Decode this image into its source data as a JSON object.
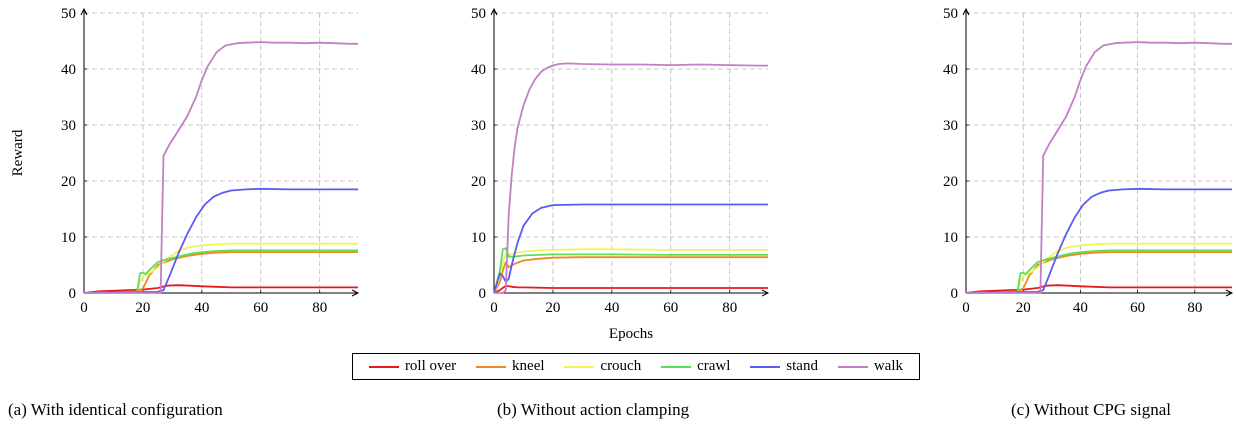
{
  "legend": {
    "items": [
      {
        "label": "roll over",
        "color": "#e41a1c"
      },
      {
        "label": "kneel",
        "color": "#ef8a22"
      },
      {
        "label": "crouch",
        "color": "#f2f25a"
      },
      {
        "label": "crawl",
        "color": "#58e058"
      },
      {
        "label": "stand",
        "color": "#5b5bf0"
      },
      {
        "label": "walk",
        "color": "#c27fc6"
      }
    ]
  },
  "captions": [
    "(a) With identical configuration",
    "(b) Without action clamping",
    "(c) Without CPG signal"
  ],
  "chart_data": [
    {
      "type": "line",
      "title": "",
      "xlabel": "",
      "ylabel": "Reward",
      "xlim": [
        0,
        93
      ],
      "ylim": [
        0,
        50
      ],
      "xticks": [
        0,
        20,
        40,
        60,
        80
      ],
      "yticks": [
        0,
        10,
        20,
        30,
        40,
        50
      ],
      "grid": true,
      "series": [
        {
          "name": "roll over",
          "color": "#e41a1c",
          "x": [
            0,
            5,
            10,
            15,
            20,
            25,
            28,
            32,
            36,
            40,
            45,
            50,
            60,
            70,
            80,
            93
          ],
          "y": [
            0,
            0.3,
            0.4,
            0.5,
            0.6,
            0.9,
            1.3,
            1.4,
            1.3,
            1.2,
            1.1,
            1.0,
            1.0,
            1.0,
            1.0,
            1.0
          ]
        },
        {
          "name": "kneel",
          "color": "#ef8a22",
          "x": [
            0,
            10,
            18,
            20,
            22,
            25,
            30,
            35,
            40,
            45,
            50,
            60,
            70,
            80,
            93
          ],
          "y": [
            0,
            0.1,
            0.3,
            0.8,
            3.0,
            5.0,
            6.0,
            6.6,
            7.0,
            7.2,
            7.3,
            7.3,
            7.3,
            7.3,
            7.3
          ]
        },
        {
          "name": "crouch",
          "color": "#f2f25a",
          "x": [
            0,
            10,
            18,
            19,
            20,
            22,
            25,
            28,
            32,
            36,
            40,
            45,
            50,
            60,
            70,
            80,
            93
          ],
          "y": [
            0,
            0.1,
            0.2,
            2.0,
            3.0,
            3.5,
            4.5,
            6.0,
            7.5,
            8.2,
            8.5,
            8.7,
            8.8,
            8.8,
            8.8,
            8.8,
            8.8
          ]
        },
        {
          "name": "crawl",
          "color": "#58e058",
          "x": [
            0,
            10,
            18,
            19,
            20,
            21,
            22,
            25,
            28,
            32,
            36,
            40,
            45,
            50,
            60,
            70,
            80,
            93
          ],
          "y": [
            0,
            0.1,
            0.1,
            3.5,
            3.6,
            3.4,
            4.0,
            5.5,
            6.0,
            6.5,
            7.0,
            7.3,
            7.5,
            7.6,
            7.6,
            7.6,
            7.6,
            7.6
          ]
        },
        {
          "name": "stand",
          "color": "#5b5bf0",
          "x": [
            0,
            10,
            25,
            27,
            29,
            32,
            35,
            38,
            41,
            44,
            47,
            50,
            55,
            60,
            70,
            80,
            93
          ],
          "y": [
            0,
            0.1,
            0.2,
            0.5,
            3.0,
            7.0,
            10.5,
            13.5,
            15.8,
            17.2,
            17.9,
            18.3,
            18.5,
            18.6,
            18.5,
            18.5,
            18.5
          ]
        },
        {
          "name": "walk",
          "color": "#c27fc6",
          "x": [
            0,
            10,
            26,
            27,
            29,
            32,
            35,
            38,
            40,
            42,
            45,
            48,
            52,
            55,
            60,
            65,
            70,
            75,
            80,
            85,
            90,
            93
          ],
          "y": [
            0,
            0,
            0,
            24.5,
            26.5,
            29.0,
            31.5,
            35.0,
            38.0,
            40.5,
            43.0,
            44.2,
            44.6,
            44.7,
            44.8,
            44.7,
            44.7,
            44.6,
            44.7,
            44.6,
            44.5,
            44.5
          ]
        }
      ]
    },
    {
      "type": "line",
      "title": "",
      "xlabel": "Epochs",
      "ylabel": "",
      "xlim": [
        0,
        93
      ],
      "ylim": [
        0,
        50
      ],
      "xticks": [
        0,
        20,
        40,
        60,
        80
      ],
      "yticks": [
        0,
        10,
        20,
        30,
        40,
        50
      ],
      "grid": true,
      "series": [
        {
          "name": "roll over",
          "color": "#e41a1c",
          "x": [
            0,
            2,
            4,
            6,
            8,
            10,
            20,
            40,
            60,
            80,
            93
          ],
          "y": [
            0,
            0.5,
            1.3,
            1.1,
            1.0,
            1.0,
            0.9,
            0.9,
            0.9,
            0.9,
            0.9
          ]
        },
        {
          "name": "kneel",
          "color": "#ef8a22",
          "x": [
            0,
            2,
            3,
            4,
            5,
            7,
            10,
            15,
            20,
            30,
            40,
            60,
            80,
            93
          ],
          "y": [
            0,
            2.0,
            4.0,
            5.5,
            4.6,
            5.2,
            5.8,
            6.1,
            6.3,
            6.4,
            6.4,
            6.4,
            6.4,
            6.4
          ]
        },
        {
          "name": "crouch",
          "color": "#f2f25a",
          "x": [
            0,
            2,
            3,
            4,
            5,
            7,
            10,
            15,
            20,
            30,
            40,
            60,
            80,
            93
          ],
          "y": [
            0,
            3.0,
            5.5,
            7.0,
            6.8,
            7.1,
            7.4,
            7.6,
            7.7,
            7.8,
            7.8,
            7.7,
            7.7,
            7.7
          ]
        },
        {
          "name": "crawl",
          "color": "#58e058",
          "x": [
            0,
            2,
            3,
            4,
            5,
            7,
            10,
            15,
            20,
            30,
            40,
            60,
            80,
            93
          ],
          "y": [
            0,
            4.0,
            7.8,
            8.0,
            6.5,
            6.5,
            6.7,
            6.8,
            6.9,
            6.9,
            6.9,
            6.8,
            6.8,
            6.8
          ]
        },
        {
          "name": "stand",
          "color": "#5b5bf0",
          "x": [
            0,
            2,
            3,
            4,
            5,
            6,
            8,
            10,
            13,
            16,
            20,
            30,
            40,
            60,
            80,
            93
          ],
          "y": [
            0,
            3.5,
            3.0,
            2.0,
            2.5,
            5.0,
            9.0,
            12.0,
            14.2,
            15.2,
            15.7,
            15.8,
            15.8,
            15.8,
            15.8,
            15.8
          ]
        },
        {
          "name": "walk",
          "color": "#c27fc6",
          "x": [
            0,
            3,
            4,
            5,
            6,
            7,
            8,
            10,
            12,
            14,
            16,
            18,
            20,
            22,
            25,
            30,
            40,
            50,
            60,
            70,
            80,
            90,
            93
          ],
          "y": [
            0,
            0,
            0.5,
            14.0,
            21.0,
            26.0,
            29.5,
            33.5,
            36.3,
            38.2,
            39.5,
            40.2,
            40.6,
            40.9,
            41.0,
            40.9,
            40.8,
            40.8,
            40.7,
            40.8,
            40.7,
            40.6,
            40.6
          ]
        }
      ]
    },
    {
      "type": "line",
      "title": "",
      "xlabel": "",
      "ylabel": "",
      "xlim": [
        0,
        93
      ],
      "ylim": [
        0,
        50
      ],
      "xticks": [
        0,
        20,
        40,
        60,
        80
      ],
      "yticks": [
        0,
        10,
        20,
        30,
        40,
        50
      ],
      "grid": true,
      "series": [
        {
          "name": "roll over",
          "color": "#e41a1c",
          "x": [
            0,
            5,
            10,
            15,
            20,
            25,
            28,
            32,
            36,
            40,
            45,
            50,
            60,
            70,
            80,
            93
          ],
          "y": [
            0,
            0.3,
            0.4,
            0.5,
            0.6,
            0.9,
            1.3,
            1.4,
            1.3,
            1.2,
            1.1,
            1.0,
            1.0,
            1.0,
            1.0,
            1.0
          ]
        },
        {
          "name": "kneel",
          "color": "#ef8a22",
          "x": [
            0,
            10,
            18,
            20,
            22,
            25,
            30,
            35,
            40,
            45,
            50,
            60,
            70,
            80,
            93
          ],
          "y": [
            0,
            0.1,
            0.3,
            0.8,
            3.0,
            5.0,
            6.0,
            6.6,
            7.0,
            7.2,
            7.3,
            7.3,
            7.3,
            7.3,
            7.3
          ]
        },
        {
          "name": "crouch",
          "color": "#f2f25a",
          "x": [
            0,
            10,
            18,
            19,
            20,
            22,
            25,
            28,
            32,
            36,
            40,
            45,
            50,
            60,
            70,
            80,
            93
          ],
          "y": [
            0,
            0.1,
            0.2,
            2.0,
            3.0,
            3.5,
            4.5,
            6.0,
            7.5,
            8.2,
            8.5,
            8.7,
            8.8,
            8.8,
            8.8,
            8.8,
            8.8
          ]
        },
        {
          "name": "crawl",
          "color": "#58e058",
          "x": [
            0,
            10,
            18,
            19,
            20,
            21,
            22,
            25,
            28,
            32,
            36,
            40,
            45,
            50,
            60,
            70,
            80,
            93
          ],
          "y": [
            0,
            0.1,
            0.1,
            3.5,
            3.6,
            3.4,
            4.0,
            5.5,
            6.0,
            6.5,
            7.0,
            7.3,
            7.5,
            7.6,
            7.6,
            7.6,
            7.6,
            7.6
          ]
        },
        {
          "name": "stand",
          "color": "#5b5bf0",
          "x": [
            0,
            10,
            25,
            27,
            29,
            32,
            35,
            38,
            41,
            44,
            47,
            50,
            55,
            60,
            70,
            80,
            93
          ],
          "y": [
            0,
            0.1,
            0.2,
            0.5,
            3.0,
            7.0,
            10.5,
            13.5,
            15.8,
            17.2,
            17.9,
            18.3,
            18.5,
            18.6,
            18.5,
            18.5,
            18.5
          ]
        },
        {
          "name": "walk",
          "color": "#c27fc6",
          "x": [
            0,
            10,
            26,
            27,
            29,
            32,
            35,
            38,
            40,
            42,
            45,
            48,
            52,
            55,
            60,
            65,
            70,
            75,
            80,
            85,
            90,
            93
          ],
          "y": [
            0,
            0,
            0,
            24.5,
            26.5,
            29.0,
            31.5,
            35.0,
            38.0,
            40.5,
            43.0,
            44.2,
            44.6,
            44.7,
            44.8,
            44.7,
            44.7,
            44.6,
            44.7,
            44.6,
            44.5,
            44.5
          ]
        }
      ]
    }
  ]
}
